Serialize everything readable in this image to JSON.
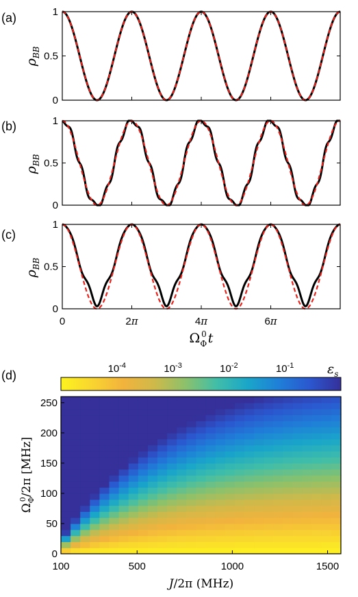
{
  "chart_data": [
    {
      "type": "line",
      "panel_label": "(a)",
      "ylabel": "ρ_BB",
      "xlim": [
        0,
        25.13
      ],
      "ylim": [
        0,
        1
      ],
      "yticks": [
        "0",
        "0.5",
        "1"
      ],
      "series": [
        {
          "kind": "exact",
          "color": "#000000",
          "style": "solid",
          "formula": "0.5+0.5*cos(t)",
          "ripple_amplitude": 0.0,
          "ripple_frequency": 0,
          "dip_amplitude": 0.0
        },
        {
          "kind": "effective",
          "color": "#e8211a",
          "style": "dashed",
          "formula": "0.5+0.5*cos(t)"
        }
      ]
    },
    {
      "type": "line",
      "panel_label": "(b)",
      "ylabel": "ρ_BB",
      "xlim": [
        0,
        25.13
      ],
      "ylim": [
        0,
        1
      ],
      "yticks": [
        "0",
        "0.5",
        "1"
      ],
      "series": [
        {
          "kind": "exact",
          "color": "#000000",
          "style": "solid",
          "formula": "0.5+0.5*cos(t)",
          "ripple_amplitude": 0.04,
          "ripple_frequency": 6,
          "dip_amplitude": 0.0
        },
        {
          "kind": "effective",
          "color": "#e8211a",
          "style": "dashed",
          "formula": "0.5+0.5*cos(t)"
        }
      ]
    },
    {
      "type": "line",
      "panel_label": "(c)",
      "ylabel": "ρ_BB",
      "xlabel": "Ω_Φ^0 t",
      "xlim": [
        0,
        25.13
      ],
      "ylim": [
        0,
        1
      ],
      "yticks": [
        "0",
        "0.5",
        "1"
      ],
      "xticks": [
        {
          "value": 0,
          "label": "0"
        },
        {
          "value": 6.283,
          "label": "2π"
        },
        {
          "value": 12.566,
          "label": "4π"
        },
        {
          "value": 18.85,
          "label": "6π"
        }
      ],
      "series": [
        {
          "kind": "exact",
          "color": "#000000",
          "style": "solid",
          "formula": "0.6+0.4*cos(t)",
          "ripple_amplitude": 0.07,
          "ripple_frequency": 4,
          "dip_amplitude": 0.1
        },
        {
          "kind": "effective",
          "color": "#e8211a",
          "style": "dashed",
          "formula": "0.5+0.5*cos(t)"
        }
      ]
    },
    {
      "type": "heatmap",
      "panel_label": "(d)",
      "xlabel": "J/2π (MHz)",
      "ylabel": "Ω_Φ^0/2π [MHz]",
      "xlim": [
        100,
        1570
      ],
      "ylim": [
        0,
        260
      ],
      "xticks": [
        "100",
        "500",
        "1000",
        "1500"
      ],
      "yticks": [
        "0",
        "50",
        "100",
        "150",
        "200",
        "250"
      ],
      "colorbar": {
        "label": "ε_s",
        "scale": "log",
        "range": [
          1e-05,
          1
        ],
        "ticks": [
          {
            "value": 0.0001,
            "label": "10^-4"
          },
          {
            "value": 0.001,
            "label": "10^-3"
          },
          {
            "value": 0.01,
            "label": "10^-2"
          },
          {
            "value": 0.1,
            "label": "10^-1"
          }
        ],
        "colors": [
          "#fdf31f",
          "#f9d530",
          "#f2b33d",
          "#cfb94a",
          "#8cc16b",
          "#41bea8",
          "#1aa6c9",
          "#1f7fd8",
          "#2b57cf",
          "#35309a"
        ]
      },
      "model": "log10(eps) = -5 + 4.8 * (Omega / Omega_c(J)); Omega_c(J) = 297 * (1 - exp(-(J - 50) / 600))",
      "grid_cols": 29,
      "grid_rows": 26
    }
  ]
}
